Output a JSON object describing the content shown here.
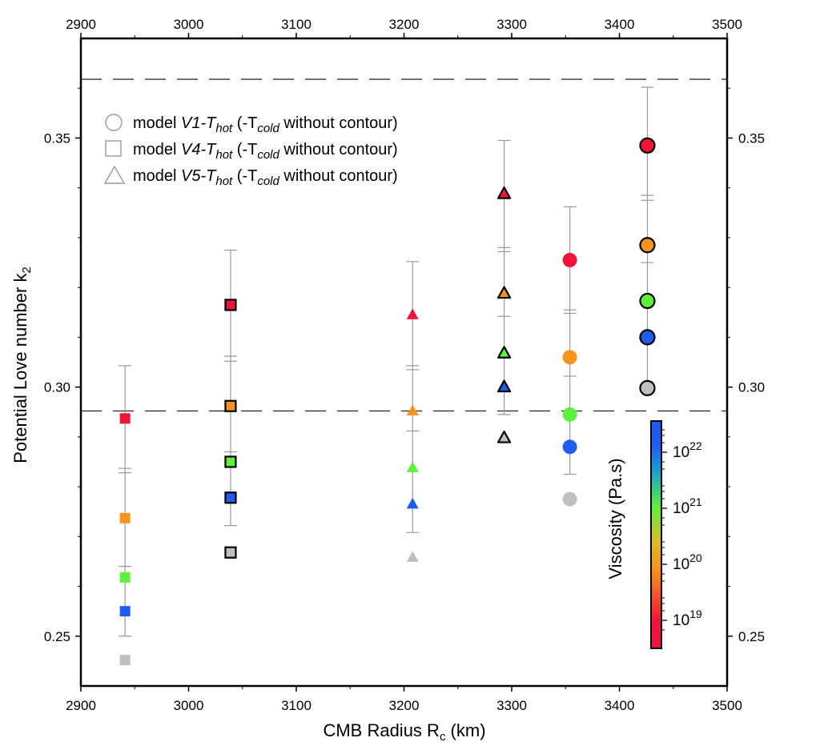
{
  "chart_data": {
    "type": "scatter",
    "xlabel": "CMB Radius R",
    "xlabel_sub": "c",
    "xlabel_unit": " (km)",
    "ylabel": "Potential Love number k",
    "ylabel_sub": "2",
    "xlim": [
      2900,
      3500
    ],
    "ylim": [
      0.24,
      0.37
    ],
    "x_ticks": [
      "2900",
      "3000",
      "3100",
      "3200",
      "3300",
      "3400",
      "3500"
    ],
    "y_ticks": [
      "0.25",
      "0.30",
      "0.35"
    ],
    "reference_lines": [
      0.3618,
      0.2952
    ],
    "legend": [
      {
        "marker": "circle",
        "prefix": "model ",
        "model": "V1-T",
        "model_sub": "hot",
        "mid": " (-T",
        "mid_sub": "cold",
        "suffix": " without contour)"
      },
      {
        "marker": "square",
        "prefix": "model ",
        "model": "V4-T",
        "model_sub": "hot",
        "mid": " (-T",
        "mid_sub": "cold",
        "suffix": " without contour)"
      },
      {
        "marker": "triangle",
        "prefix": "model ",
        "model": "V5-T",
        "model_sub": "hot",
        "mid": " (-T",
        "mid_sub": "cold",
        "suffix": " without contour)"
      }
    ],
    "viscosity_colors": {
      "v19": "#f0143c",
      "v20": "#f7941d",
      "v21": "#5ef03c",
      "v22": "#1f5cf0",
      "inviscid": "#c0c0c0"
    },
    "points": [
      {
        "x": 2941,
        "y": 0.2937,
        "marker": "square",
        "viscosity": "v19",
        "contour": false
      },
      {
        "x": 2941,
        "y": 0.2737,
        "marker": "square",
        "viscosity": "v20",
        "contour": false
      },
      {
        "x": 2941,
        "y": 0.2618,
        "marker": "square",
        "viscosity": "v21",
        "contour": false
      },
      {
        "x": 2941,
        "y": 0.255,
        "marker": "square",
        "viscosity": "v22",
        "contour": false
      },
      {
        "x": 2941,
        "y": 0.2452,
        "marker": "square",
        "viscosity": "inviscid",
        "contour": false
      },
      {
        "x": 3039,
        "y": 0.3165,
        "marker": "square",
        "viscosity": "v19",
        "contour": true
      },
      {
        "x": 3039,
        "y": 0.2962,
        "marker": "square",
        "viscosity": "v20",
        "contour": true
      },
      {
        "x": 3039,
        "y": 0.285,
        "marker": "square",
        "viscosity": "v21",
        "contour": true
      },
      {
        "x": 3039,
        "y": 0.2778,
        "marker": "square",
        "viscosity": "v22",
        "contour": true
      },
      {
        "x": 3039,
        "y": 0.2668,
        "marker": "square",
        "viscosity": "inviscid",
        "contour": true
      },
      {
        "x": 3208,
        "y": 0.3145,
        "marker": "triangle",
        "viscosity": "v19",
        "contour": false
      },
      {
        "x": 3208,
        "y": 0.2952,
        "marker": "triangle",
        "viscosity": "v20",
        "contour": false
      },
      {
        "x": 3208,
        "y": 0.2838,
        "marker": "triangle",
        "viscosity": "v21",
        "contour": false
      },
      {
        "x": 3208,
        "y": 0.2765,
        "marker": "triangle",
        "viscosity": "v22",
        "contour": false
      },
      {
        "x": 3208,
        "y": 0.2658,
        "marker": "triangle",
        "viscosity": "inviscid",
        "contour": false
      },
      {
        "x": 3293,
        "y": 0.3388,
        "marker": "triangle",
        "viscosity": "v19",
        "contour": true
      },
      {
        "x": 3293,
        "y": 0.3188,
        "marker": "triangle",
        "viscosity": "v20",
        "contour": true
      },
      {
        "x": 3293,
        "y": 0.3068,
        "marker": "triangle",
        "viscosity": "v21",
        "contour": true
      },
      {
        "x": 3293,
        "y": 0.3,
        "marker": "triangle",
        "viscosity": "v22",
        "contour": true
      },
      {
        "x": 3293,
        "y": 0.2898,
        "marker": "triangle",
        "viscosity": "inviscid",
        "contour": true
      },
      {
        "x": 3354,
        "y": 0.3255,
        "marker": "circle",
        "viscosity": "v19",
        "contour": false
      },
      {
        "x": 3354,
        "y": 0.306,
        "marker": "circle",
        "viscosity": "v20",
        "contour": false
      },
      {
        "x": 3354,
        "y": 0.2945,
        "marker": "circle",
        "viscosity": "v21",
        "contour": false
      },
      {
        "x": 3354,
        "y": 0.288,
        "marker": "circle",
        "viscosity": "v22",
        "contour": false
      },
      {
        "x": 3354,
        "y": 0.2775,
        "marker": "circle",
        "viscosity": "inviscid",
        "contour": false
      },
      {
        "x": 3426,
        "y": 0.3485,
        "marker": "circle",
        "viscosity": "v19",
        "contour": true
      },
      {
        "x": 3426,
        "y": 0.3285,
        "marker": "circle",
        "viscosity": "v20",
        "contour": true
      },
      {
        "x": 3426,
        "y": 0.3173,
        "marker": "circle",
        "viscosity": "v21",
        "contour": true
      },
      {
        "x": 3426,
        "y": 0.31,
        "marker": "circle",
        "viscosity": "v22",
        "contour": true
      },
      {
        "x": 3426,
        "y": 0.2998,
        "marker": "circle",
        "viscosity": "inviscid",
        "contour": true
      }
    ],
    "error_bars": [
      {
        "x": 2941,
        "low": 0.25,
        "high": 0.3043,
        "ticks": [
          0.2837,
          0.2828,
          0.264
        ]
      },
      {
        "x": 3039,
        "low": 0.2722,
        "high": 0.3275,
        "ticks": [
          0.3062,
          0.3052,
          0.287
        ]
      },
      {
        "x": 3208,
        "low": 0.2708,
        "high": 0.3252,
        "ticks": [
          0.3043,
          0.3035,
          0.2912
        ]
      },
      {
        "x": 3293,
        "low": 0.2945,
        "high": 0.3495,
        "ticks": [
          0.328,
          0.3272,
          0.3142
        ]
      },
      {
        "x": 3354,
        "low": 0.2825,
        "high": 0.3362,
        "ticks": [
          0.3155,
          0.3148,
          0.3022
        ]
      },
      {
        "x": 3426,
        "low": 0.2998,
        "high": 0.3602,
        "ticks": [
          0.3385,
          0.3375,
          0.325
        ]
      }
    ],
    "colorbar": {
      "title": "Viscosity (Pa.s)",
      "base": "10",
      "labels": [
        "19",
        "20",
        "21",
        "22"
      ],
      "stops": [
        "#f0143c",
        "#f0143c",
        "#f7941d",
        "#d6c02a",
        "#5ef03c",
        "#1aa0d0",
        "#1f5cf0",
        "#1f5cf0"
      ]
    }
  }
}
